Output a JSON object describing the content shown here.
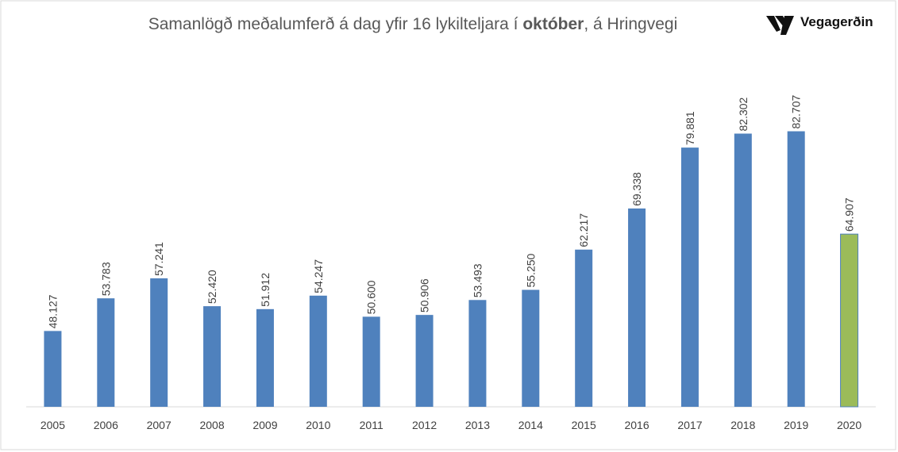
{
  "chart_data": {
    "type": "bar",
    "title": [
      "Samanlögð meðalumferð á dag yfir 16 lykilteljara í ",
      "október",
      ", á Hringvegi"
    ],
    "logo": "Vegagerðin",
    "categories": [
      "2005",
      "2006",
      "2007",
      "2008",
      "2009",
      "2010",
      "2011",
      "2012",
      "2013",
      "2014",
      "2015",
      "2016",
      "2017",
      "2018",
      "2019",
      "2020"
    ],
    "values": [
      48127,
      53783,
      57241,
      52420,
      51912,
      54247,
      50600,
      50906,
      53493,
      55250,
      62217,
      69338,
      79881,
      82302,
      82707,
      64907
    ],
    "value_labels": [
      "48.127",
      "53.783",
      "57.241",
      "52.420",
      "51.912",
      "54.247",
      "50.600",
      "50.906",
      "53.493",
      "55.250",
      "62.217",
      "69.338",
      "79.881",
      "82.302",
      "82.707",
      "64.907"
    ],
    "colors": [
      "#4f81bd",
      "#4f81bd",
      "#4f81bd",
      "#4f81bd",
      "#4f81bd",
      "#4f81bd",
      "#4f81bd",
      "#4f81bd",
      "#4f81bd",
      "#4f81bd",
      "#4f81bd",
      "#4f81bd",
      "#4f81bd",
      "#4f81bd",
      "#4f81bd",
      "#9bbb59"
    ],
    "ylim": [
      35000,
      95000
    ]
  }
}
